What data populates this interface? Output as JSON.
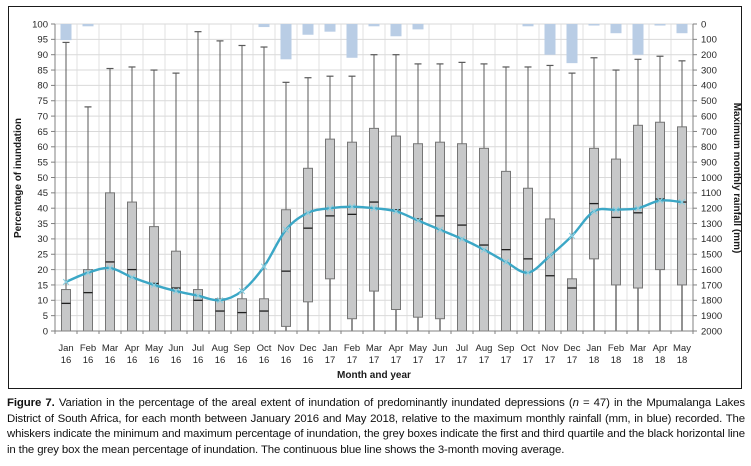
{
  "figure_caption": {
    "label": "Figure 7.",
    "segments": [
      {
        "t": "Variation in the percentage of the areal extent of inundation of predominantly inundated depressions ("
      },
      {
        "t": "n",
        "italic": true
      },
      {
        "t": " = 47) in the Mpumalanga Lakes District of South Africa, for each month between January 2016 and May 2018, relative to the maximum monthly rainfall (mm, in blue) recorded. The whiskers indicate the minimum and maximum percentage of inundation, the grey boxes indicate the first and third quartile and the black horizontal line in the grey box the mean percentage of inundation. The continuous blue line shows the 3-month moving average."
      }
    ]
  },
  "chart_data": {
    "type": "combo: box-whisker (inundation %) + inverted bars (rainfall) + smoothed line (3-month moving average)",
    "x_axis": {
      "title": "Month and year",
      "categories": [
        "Jan 16",
        "Feb 16",
        "Mar 16",
        "Apr 16",
        "May 16",
        "Jun 16",
        "Jul 16",
        "Aug 16",
        "Sep 16",
        "Oct 16",
        "Nov 16",
        "Dec 16",
        "Jan 17",
        "Feb 17",
        "Mar 17",
        "Apr 17",
        "May 17",
        "Jun 17",
        "Jul 17",
        "Aug 17",
        "Sep 17",
        "Oct 17",
        "Nov 17",
        "Dec 17",
        "Jan 18",
        "Feb 18",
        "Mar 18",
        "Apr 18",
        "May 18"
      ]
    },
    "left_axis": {
      "title": "Percentage of inundation",
      "min": 0,
      "max": 100,
      "step": 5
    },
    "right_axis": {
      "title": "Maximum monthly rainfall (mm)",
      "min": 0,
      "max": 2000,
      "step": 100,
      "orientation": "0 at top (bars hang downward)"
    },
    "grid": {
      "horizontal": true,
      "vertical": true
    },
    "legend": "none (explained in caption)",
    "series": {
      "rainfall_mm": [
        105,
        15,
        0,
        0,
        0,
        0,
        0,
        0,
        0,
        20,
        230,
        70,
        50,
        220,
        15,
        80,
        35,
        0,
        0,
        0,
        0,
        15,
        200,
        255,
        10,
        60,
        200,
        10,
        60
      ],
      "box_max": [
        94,
        73,
        85.5,
        86,
        85,
        84,
        97.5,
        94.5,
        93,
        92.5,
        81,
        82.5,
        83,
        83,
        90,
        90,
        87,
        87,
        87.5,
        87,
        86,
        86,
        86.5,
        84,
        89,
        85,
        88.5,
        89.5,
        88
      ],
      "box_q3": [
        13.5,
        20,
        45,
        42,
        34,
        26,
        13.5,
        10.5,
        10.5,
        10.5,
        39.5,
        53,
        62.5,
        61.5,
        66,
        63.5,
        61,
        61.5,
        61,
        59.5,
        52,
        46.5,
        36.5,
        17,
        59.5,
        56,
        67,
        68,
        66.5
      ],
      "box_mean": [
        9,
        12.5,
        22.5,
        20,
        15.5,
        14,
        10,
        6.5,
        6,
        6.5,
        19.5,
        33.5,
        37.5,
        38,
        42,
        39.5,
        36.5,
        37.5,
        34.5,
        28,
        26.5,
        23.5,
        18,
        14,
        41.5,
        37,
        38.5,
        43,
        42
      ],
      "box_q1": [
        0,
        0,
        0,
        0,
        0,
        0,
        0,
        0,
        0,
        0,
        1.5,
        9.5,
        17,
        4,
        13,
        7,
        4.5,
        4,
        0,
        0,
        0,
        0,
        0,
        0,
        23.5,
        15,
        14,
        20,
        15
      ],
      "box_min": [
        0,
        0,
        0,
        0,
        0,
        0,
        0,
        0,
        0,
        0,
        0,
        0,
        0,
        0,
        0,
        0,
        0,
        0,
        0,
        0,
        0,
        0,
        0,
        0,
        0,
        0,
        0,
        0,
        0
      ],
      "moving_avg_pct": [
        16,
        19,
        20.5,
        17.5,
        15,
        13,
        11.5,
        10,
        13,
        21,
        33,
        38.5,
        40,
        40.5,
        40,
        39,
        36,
        33,
        30,
        26.5,
        22.5,
        19,
        24.5,
        31,
        39,
        39.5,
        40,
        42.5,
        42
      ]
    },
    "colors": {
      "box_fill": "#c7c8c9",
      "box_border": "#767676",
      "upper_whisker": "#595959",
      "lower_whisker": "#262626",
      "mean_line": "#1f1f1f",
      "rain_bar": "#b9cde5",
      "avg_line": "#3ba7c6",
      "avg_marker": "#8ecfdf",
      "grid_h": "#d9d9d9",
      "grid_v": "#e2e2e2",
      "axis": "#808080",
      "tick_text": "#262626"
    }
  }
}
